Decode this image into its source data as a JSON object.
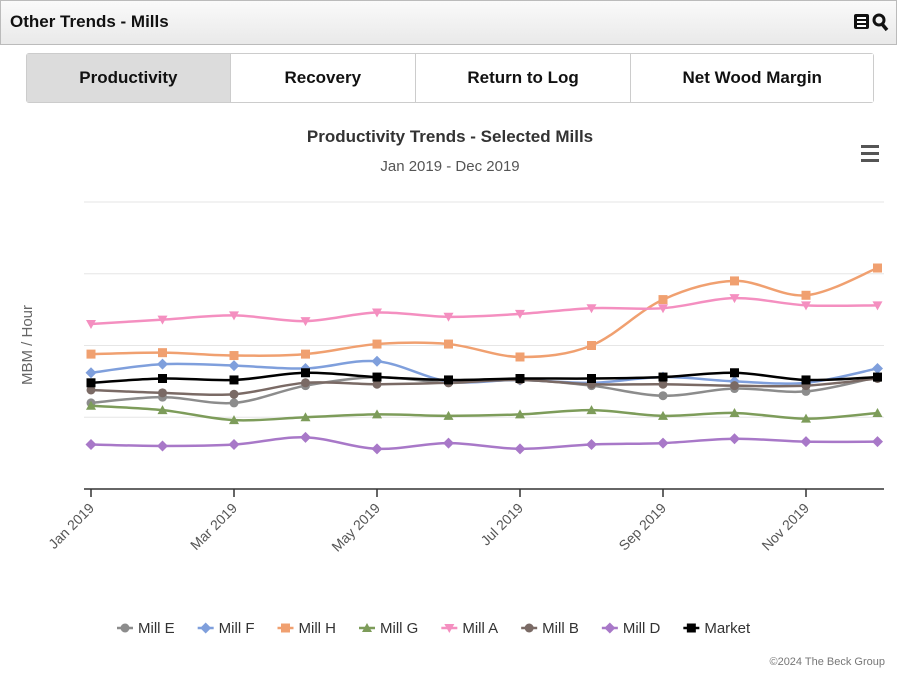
{
  "header": {
    "title": "Other Trends - Mills"
  },
  "tabs": [
    "Productivity",
    "Recovery",
    "Return to Log",
    "Net Wood Margin"
  ],
  "credit": "©2024 The Beck Group",
  "chart_data": {
    "type": "line",
    "title": "Productivity Trends - Selected Mills",
    "subtitle": "Jan 2019 - Dec 2019",
    "y_label": "MBM / Hour",
    "categories": [
      "Jan 2019",
      null,
      "Mar 2019",
      null,
      "May 2019",
      null,
      "Jul 2019",
      null,
      "Sep 2019",
      null,
      "Nov 2019",
      null
    ],
    "ylim": [
      0,
      20
    ],
    "yticks": [
      0,
      5,
      10,
      15,
      20
    ],
    "grid": true,
    "legend": "bottom",
    "series": [
      {
        "name": "Mill E",
        "color": "#8c8c8c",
        "marker": "circle",
        "values": [
          6.0,
          6.4,
          6.0,
          7.2,
          7.8,
          7.4,
          7.6,
          7.2,
          6.5,
          7.0,
          6.8,
          7.8
        ]
      },
      {
        "name": "Mill F",
        "color": "#7f9fdc",
        "marker": "diamond",
        "values": [
          8.1,
          8.7,
          8.6,
          8.4,
          8.9,
          7.5,
          7.6,
          7.4,
          7.8,
          7.5,
          7.4,
          8.4
        ]
      },
      {
        "name": "Mill H",
        "color": "#f0a070",
        "marker": "square",
        "values": [
          9.4,
          9.5,
          9.3,
          9.4,
          10.1,
          10.1,
          9.2,
          10.0,
          13.2,
          14.5,
          13.5,
          15.4
        ]
      },
      {
        "name": "Mill G",
        "color": "#7d9c5a",
        "marker": "triangle",
        "values": [
          5.8,
          5.5,
          4.8,
          5.0,
          5.2,
          5.1,
          5.2,
          5.5,
          5.1,
          5.3,
          4.9,
          5.3
        ]
      },
      {
        "name": "Mill A",
        "color": "#f48fc0",
        "marker": "triangle-down",
        "values": [
          11.5,
          11.8,
          12.1,
          11.7,
          12.3,
          12.0,
          12.2,
          12.6,
          12.6,
          13.3,
          12.8,
          12.8
        ]
      },
      {
        "name": "Mill B",
        "color": "#7a6a65",
        "marker": "circle",
        "values": [
          6.9,
          6.7,
          6.6,
          7.4,
          7.3,
          7.4,
          7.6,
          7.3,
          7.3,
          7.2,
          7.2,
          7.7
        ]
      },
      {
        "name": "Mill D",
        "color": "#a878c8",
        "marker": "diamond",
        "values": [
          3.1,
          3.0,
          3.1,
          3.6,
          2.8,
          3.2,
          2.8,
          3.1,
          3.2,
          3.5,
          3.3,
          3.3
        ]
      },
      {
        "name": "Market",
        "color": "#000000",
        "marker": "square",
        "values": [
          7.4,
          7.7,
          7.6,
          8.1,
          7.8,
          7.6,
          7.7,
          7.7,
          7.8,
          8.1,
          7.6,
          7.8
        ]
      }
    ]
  }
}
